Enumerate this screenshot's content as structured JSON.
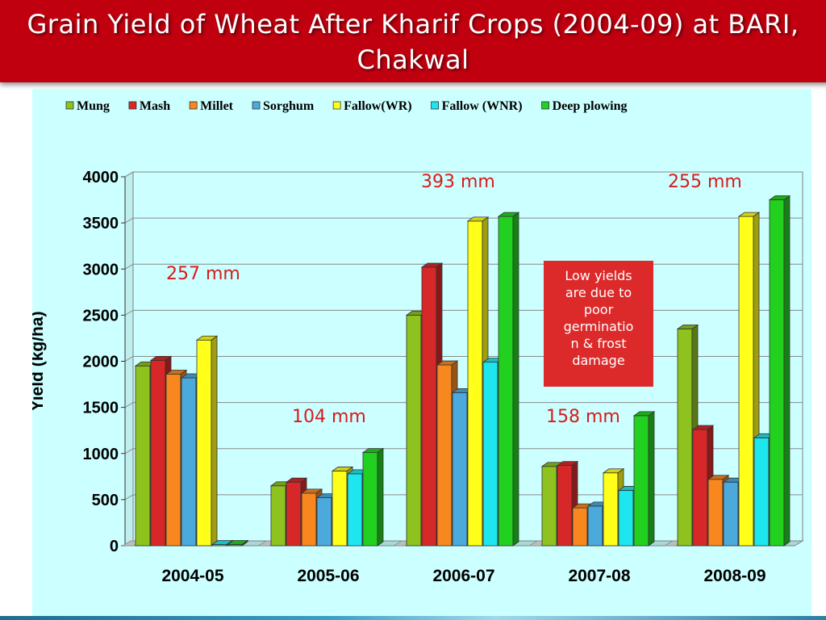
{
  "title": "Grain Yield of Wheat After Kharif Crops (2004-09) at BARI, Chakwal",
  "chart_data": {
    "type": "bar",
    "categories": [
      "2004-05",
      "2005-06",
      "2006-07",
      "2007-08",
      "2008-09"
    ],
    "series": [
      {
        "name": "Mung",
        "color": "#8dc21f",
        "values": [
          1950,
          650,
          2500,
          860,
          2350
        ]
      },
      {
        "name": "Mash",
        "color": "#d62828",
        "values": [
          2010,
          690,
          3020,
          870,
          1260
        ]
      },
      {
        "name": "Millet",
        "color": "#f7871e",
        "values": [
          1860,
          570,
          1960,
          410,
          720
        ]
      },
      {
        "name": "Sorghum",
        "color": "#4ba9dc",
        "values": [
          1820,
          520,
          1660,
          430,
          690
        ]
      },
      {
        "name": "Fallow(WR)",
        "color": "#ffff1a",
        "values": [
          2230,
          810,
          3520,
          790,
          3570
        ]
      },
      {
        "name": "Fallow (WNR)",
        "color": "#1ee6ee",
        "values": [
          0,
          780,
          1990,
          600,
          1170
        ]
      },
      {
        "name": "Deep plowing",
        "color": "#22d020",
        "values": [
          0,
          1010,
          3570,
          1410,
          3750
        ]
      }
    ],
    "ylabel": "Yield (kg/ha)",
    "ylim": [
      0,
      4000
    ],
    "yticks": [
      0,
      500,
      1000,
      1500,
      2000,
      2500,
      3000,
      3500,
      4000
    ],
    "legend_position": "top",
    "rainfall_labels": [
      "257 mm",
      "104 mm",
      "393 mm",
      "158 mm",
      "255 mm"
    ],
    "callout": "Low yields are due to poor germination & frost damage",
    "callout_lines": [
      "Low yields",
      "are due to",
      "poor",
      "germinatio",
      "n & frost",
      "damage"
    ],
    "colors": {
      "plot_background": "#ccffff",
      "rainfall_text": "#d81b1b",
      "callout_background": "#dc2a2a",
      "title_background": "#c0000f"
    }
  }
}
